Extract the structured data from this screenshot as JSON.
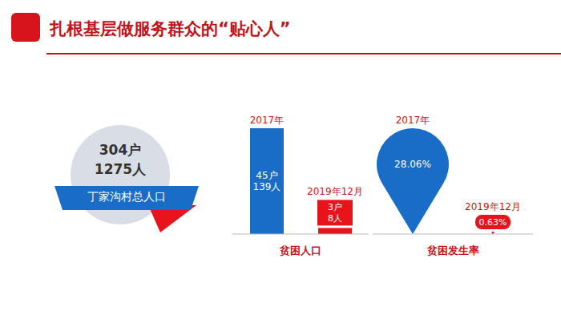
{
  "title": "扎根基层做服务群众的“贴心人”",
  "total_population": {
    "label": "丁家沟村总人口",
    "lines": [
      "304户",
      "1275人"
    ]
  },
  "chart_data": [
    {
      "type": "bar",
      "xlabel": "贫困人口",
      "categories": [
        "2017年",
        "2019年12月"
      ],
      "values": [
        139,
        8
      ],
      "value_labels": [
        "45户\n139人",
        "3户\n8人"
      ],
      "colors": [
        "#1a6dc6",
        "#e8141c"
      ],
      "data_labels": true,
      "tick_labels": false
    },
    {
      "type": "bar",
      "marker": "teardrop",
      "xlabel": "贫困发生率",
      "categories": [
        "2017年",
        "2019年12月"
      ],
      "values": [
        28.06,
        0.63
      ],
      "value_labels": [
        "28.06%",
        "0.63%"
      ],
      "colors": [
        "#1a6dc6",
        "#e8141c"
      ],
      "data_labels": true,
      "tick_labels": false
    }
  ]
}
